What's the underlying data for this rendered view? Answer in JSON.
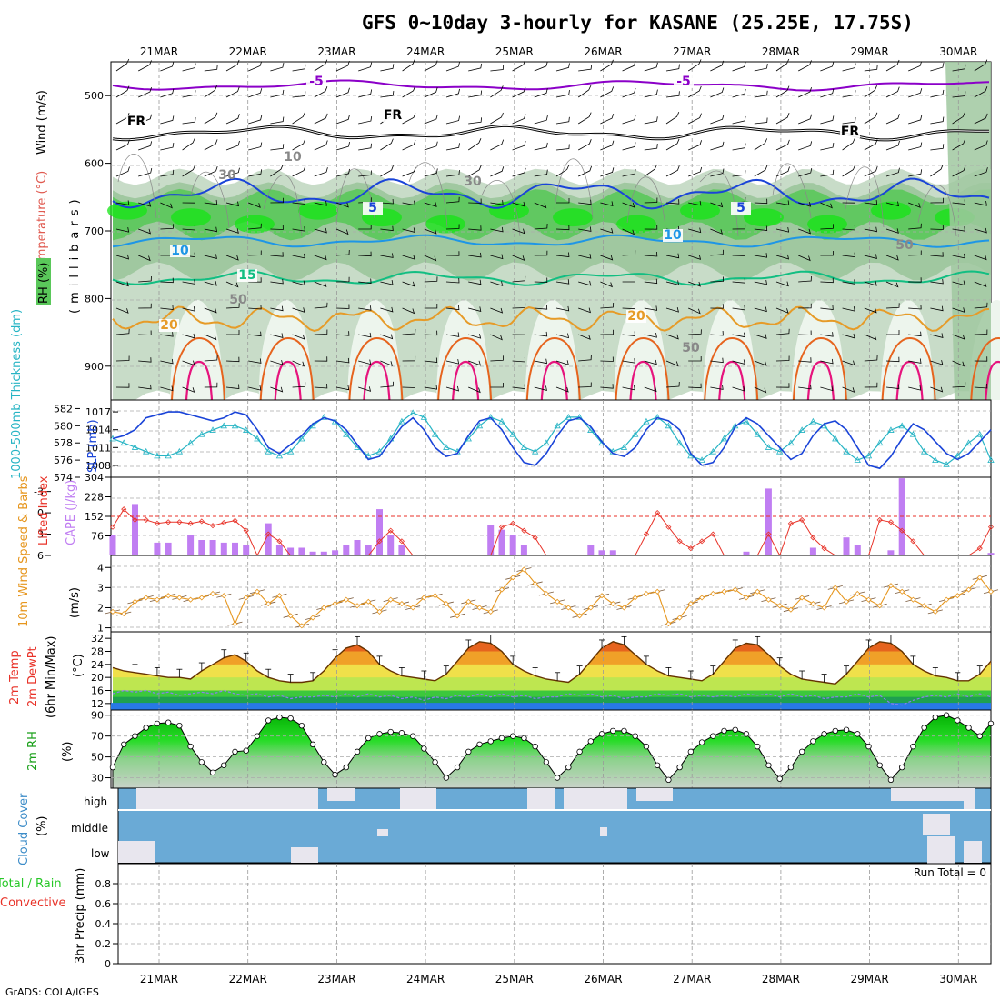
{
  "title": "GFS 0~10day 3-hourly for KASANE (25.25E, 17.75S)",
  "footer": "GrADS: COLA/IGES",
  "dates": [
    "21MAR",
    "22MAR",
    "23MAR",
    "24MAR",
    "25MAR",
    "26MAR",
    "27MAR",
    "28MAR",
    "29MAR",
    "30MAR"
  ],
  "colors": {
    "purple": "#8b00c8",
    "black": "#000000",
    "blue": "#1a44d8",
    "ltblue": "#1e96e6",
    "green": "#12be82",
    "orange": "#e69b28",
    "dkorange": "#e6641e",
    "magenta": "#e6147d",
    "rh1": "#c8dcc8",
    "rh2": "#a0c8a0",
    "rh3": "#5ac85a",
    "rh4": "#14e614",
    "cape": "#c07ef2",
    "li": "#e83228",
    "wind": "#e6961e",
    "cloud": "#6aaad6",
    "precipAxis": "#000000"
  },
  "upper_panel": {
    "ylabel_wind": "Wind (m/s)",
    "ylabel_temp": "Temperature (°C)",
    "ylabel_rh": "RH (%)",
    "ylabel_mb": "(millibars)",
    "yticks": [
      "500",
      "600",
      "700",
      "800",
      "900"
    ],
    "contour_labels": [
      "-5",
      "-5",
      "FR",
      "FR",
      "FR",
      "5",
      "5",
      "10",
      "10",
      "15",
      "20",
      "20",
      "10",
      "30",
      "30",
      "50",
      "50",
      "50"
    ]
  },
  "slp_panel": {
    "ylabel_thk": "1000-500mb Thickness (dm)",
    "ylabel_slp": "SLP (mb)",
    "thk_ticks": [
      "582",
      "580",
      "578",
      "576",
      "574"
    ],
    "slp_ticks": [
      "1017",
      "1014",
      "1011",
      "1008"
    ]
  },
  "cape_panel": {
    "ylabel_li": "Lifted Index",
    "ylabel_cape": "CAPE (J/kg)",
    "li_ticks": [
      "-3",
      "0",
      "3",
      "6"
    ],
    "cape_ticks": [
      "304",
      "228",
      "152",
      "76"
    ]
  },
  "wind_panel": {
    "ylabel": "10m Wind Speed & Barbs",
    "ylabel_unit": "(m/s)",
    "yticks": [
      "4",
      "3",
      "2",
      "1"
    ]
  },
  "temp_panel": {
    "ylabel1": "2m Temp",
    "ylabel2": "2m DewPt",
    "ylabel3": "(6hr Min/Max)",
    "unit": "(°C)",
    "yticks": [
      "32",
      "28",
      "24",
      "20",
      "16",
      "12"
    ]
  },
  "rh_panel": {
    "ylabel": "2m RH",
    "unit": "(%)",
    "yticks": [
      "90",
      "70",
      "50",
      "30"
    ]
  },
  "cloud_panel": {
    "ylabel": "Cloud Cover",
    "unit": "(%)",
    "levels": [
      "high",
      "middle",
      "low"
    ]
  },
  "precip_panel": {
    "ylabel_total": "Total / Rain",
    "ylabel_conv": "Convective",
    "ylabel_unit": "3hr Precip (mm)",
    "run_total": "Run Total = 0",
    "yticks": [
      "0.8",
      "0.6",
      "0.4",
      "0.2",
      "0"
    ]
  },
  "chart_data": {
    "type": "meteogram",
    "x": {
      "start": "20MAR 12Z",
      "step_hours": 3,
      "count": 80
    },
    "slp_mb": [
      1012.5,
      1013,
      1014,
      1016,
      1016.5,
      1017,
      1017,
      1016.5,
      1016,
      1015.5,
      1016,
      1017,
      1016.5,
      1014,
      1011,
      1010,
      1011.5,
      1013,
      1015,
      1016,
      1015.5,
      1014,
      1011.5,
      1009,
      1009.5,
      1012,
      1014.5,
      1016,
      1014,
      1011,
      1009.5,
      1010,
      1013,
      1015.5,
      1016,
      1014,
      1011,
      1008.5,
      1008,
      1010,
      1013,
      1015.5,
      1016,
      1014.5,
      1012,
      1010,
      1009.5,
      1011,
      1014,
      1016,
      1015.5,
      1014,
      1010,
      1008,
      1008.5,
      1011,
      1014.5,
      1016,
      1015,
      1013,
      1011,
      1009,
      1010,
      1013,
      1015,
      1015.5,
      1014,
      1011,
      1008,
      1007.5,
      1009.5,
      1012.5,
      1015,
      1014,
      1012,
      1010,
      1009,
      1010,
      1012,
      1014
    ],
    "thickness_dm": [
      578.5,
      578,
      577.5,
      577,
      576.5,
      576.5,
      577,
      578,
      579,
      579.5,
      580,
      580,
      579.5,
      578.5,
      577,
      576.5,
      577,
      578.5,
      580,
      581,
      580.5,
      579,
      577.5,
      576.5,
      577,
      578.5,
      580.5,
      581.5,
      581,
      579,
      577.5,
      577,
      578.5,
      580,
      581,
      580.5,
      579,
      577.5,
      577,
      578,
      580,
      581,
      581,
      579.5,
      578,
      577,
      577.5,
      579,
      580.5,
      581,
      580,
      578,
      576.5,
      576,
      577,
      578.5,
      580,
      580.5,
      579,
      577.5,
      577,
      578,
      579.5,
      580.5,
      580,
      578.5,
      577,
      576,
      576.5,
      578,
      579.5,
      580,
      579,
      577,
      576,
      575.5,
      576.5,
      578,
      579,
      576
    ],
    "cape_jkg": [
      80,
      0,
      200,
      0,
      50,
      50,
      0,
      80,
      60,
      60,
      50,
      50,
      40,
      0,
      125,
      40,
      30,
      30,
      15,
      15,
      20,
      40,
      60,
      40,
      180,
      80,
      40,
      0,
      0,
      0,
      0,
      0,
      0,
      0,
      120,
      100,
      80,
      40,
      0,
      0,
      0,
      0,
      0,
      40,
      20,
      20,
      0,
      0,
      0,
      0,
      0,
      0,
      0,
      0,
      0,
      0,
      0,
      15,
      0,
      260,
      0,
      0,
      0,
      30,
      0,
      0,
      70,
      40,
      0,
      0,
      20,
      300,
      0,
      0,
      0,
      0,
      0,
      0,
      0,
      10
    ],
    "lifted_index": [
      2,
      -0.5,
      1,
      1,
      1.5,
      1.3,
      1.3,
      1.5,
      1.2,
      1.8,
      1.4,
      1.1,
      2.5,
      6,
      3,
      4,
      6,
      6,
      6,
      6,
      6,
      6,
      6,
      6,
      4,
      2.5,
      4,
      6,
      6,
      6,
      6,
      6,
      6,
      6,
      6,
      2,
      1.5,
      2.5,
      3.5,
      6,
      6,
      6,
      6,
      6,
      6,
      6,
      6,
      6,
      3,
      0,
      2,
      4,
      5,
      4,
      3,
      6,
      6,
      6,
      6,
      3,
      6,
      1.5,
      1,
      3.5,
      5,
      6,
      6,
      6,
      6,
      1,
      1.3,
      2.5,
      4,
      6,
      6,
      6,
      6,
      6,
      5,
      2
    ],
    "wind_speed_ms": [
      1.8,
      1.7,
      2.3,
      2.5,
      2.4,
      2.6,
      2.5,
      2.4,
      2.5,
      2.7,
      2.6,
      1.2,
      2.5,
      2.8,
      2.2,
      2.6,
      1.6,
      1.1,
      1.5,
      2.0,
      2.2,
      2.4,
      2.1,
      2.3,
      1.8,
      2.4,
      2.2,
      2.0,
      2.5,
      2.6,
      2.2,
      1.6,
      2.3,
      2.0,
      1.8,
      2.9,
      3.5,
      3.9,
      3.2,
      2.7,
      2.3,
      2.0,
      1.6,
      2.0,
      2.6,
      2.2,
      2.0,
      2.5,
      2.7,
      2.8,
      1.2,
      1.5,
      2.2,
      2.5,
      2.7,
      2.8,
      2.9,
      2.5,
      2.8,
      2.4,
      2.1,
      1.9,
      2.5,
      2.2,
      2.0,
      3.0,
      2.3,
      2.7,
      2.4,
      2.1,
      3.1,
      2.8,
      2.4,
      2.1,
      1.8,
      2.4,
      2.6,
      2.9,
      3.5,
      2.8
    ],
    "temp_2m_c": [
      23,
      22,
      21.5,
      21,
      20.5,
      20,
      20,
      19.5,
      22,
      24,
      26,
      27,
      25,
      22,
      20,
      19,
      18.5,
      18.5,
      19,
      22,
      26,
      29,
      30,
      28,
      24,
      22,
      20.5,
      20,
      19.5,
      19,
      21,
      25,
      29,
      31,
      30.5,
      28,
      24,
      22,
      20.5,
      19.5,
      19,
      18.5,
      21,
      25,
      29,
      31,
      30,
      27,
      24,
      22,
      20.5,
      20,
      19.5,
      19,
      21,
      25,
      29,
      30.5,
      30,
      27,
      23.5,
      21,
      19.5,
      19,
      18.5,
      18,
      21,
      25,
      29,
      31,
      30.5,
      28,
      24,
      22,
      20.5,
      20,
      19,
      19,
      21,
      25
    ],
    "dewpt_2m_c": [
      15,
      16,
      15.5,
      16,
      15,
      15.5,
      14.5,
      15,
      15.5,
      15,
      16,
      15,
      14.5,
      15,
      14,
      14.5,
      13.5,
      14,
      14,
      14.5,
      14,
      15,
      14,
      15,
      14,
      14.5,
      13.5,
      14,
      13,
      14,
      13.5,
      14.5,
      14,
      15,
      14,
      15,
      14,
      14.5,
      13.5,
      14,
      14,
      15,
      14.5,
      15,
      14,
      14.5,
      13.5,
      14,
      14,
      15,
      14.5,
      15,
      14,
      14.5,
      14,
      14.5,
      14,
      15,
      14.5,
      15,
      14,
      15,
      14,
      14.5,
      13.5,
      14,
      14,
      15,
      14,
      14.5,
      12,
      11.5,
      13,
      14,
      14.5,
      14,
      15,
      14,
      15,
      14
    ],
    "rh_2m_pct": [
      40,
      62,
      70,
      78,
      82,
      83,
      80,
      60,
      45,
      35,
      42,
      55,
      56,
      70,
      85,
      88,
      87,
      80,
      62,
      45,
      33,
      40,
      55,
      68,
      72,
      74,
      73,
      70,
      58,
      45,
      30,
      40,
      55,
      62,
      65,
      68,
      70,
      68,
      60,
      45,
      30,
      40,
      55,
      65,
      72,
      75,
      75,
      70,
      60,
      42,
      28,
      40,
      55,
      64,
      70,
      75,
      76,
      72,
      60,
      42,
      29,
      40,
      55,
      65,
      72,
      75,
      76,
      72,
      60,
      42,
      28,
      40,
      60,
      78,
      88,
      90,
      85,
      78,
      70,
      82
    ],
    "precip_3hr_mm": [
      0,
      0,
      0,
      0,
      0,
      0,
      0,
      0,
      0,
      0,
      0,
      0,
      0,
      0,
      0,
      0,
      0,
      0,
      0,
      0,
      0,
      0,
      0,
      0,
      0,
      0,
      0,
      0,
      0,
      0,
      0,
      0,
      0,
      0,
      0,
      0,
      0,
      0,
      0,
      0,
      0,
      0,
      0,
      0,
      0,
      0,
      0,
      0,
      0,
      0,
      0,
      0,
      0,
      0,
      0,
      0,
      0,
      0,
      0,
      0,
      0,
      0,
      0,
      0,
      0,
      0,
      0,
      0,
      0,
      0,
      0,
      0,
      0,
      0,
      0,
      0,
      0,
      0,
      0,
      0
    ],
    "axis_ranges": {
      "pressure_mb": [
        950,
        450
      ],
      "slp_mb": [
        1006,
        1019
      ],
      "thickness_dm": [
        574,
        583
      ],
      "cape_jkg": [
        0,
        304
      ],
      "lifted_index": [
        6,
        -5
      ],
      "wind_ms": [
        0.8,
        4.6
      ],
      "temp_c": [
        10,
        34
      ],
      "rh_pct": [
        20,
        95
      ],
      "precip_mm": [
        0,
        1
      ]
    }
  }
}
